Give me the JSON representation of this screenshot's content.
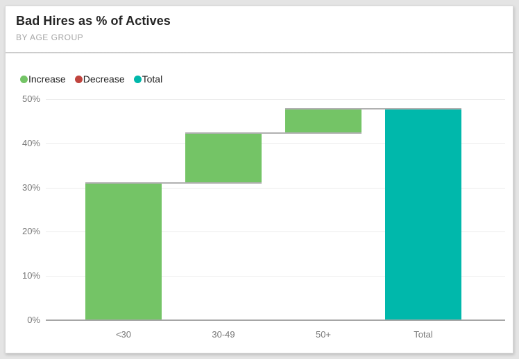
{
  "chart_data": {
    "type": "bar",
    "subtype": "waterfall",
    "title": "Bad Hires as % of Actives",
    "subtitle": "BY AGE GROUP",
    "categories": [
      "<30",
      "30-49",
      "50+",
      "Total"
    ],
    "series": [
      {
        "category": "<30",
        "kind": "increase",
        "start": 0,
        "end": 30.9,
        "delta": 30.9
      },
      {
        "category": "30-49",
        "kind": "increase",
        "start": 30.9,
        "end": 42.2,
        "delta": 11.3
      },
      {
        "category": "50+",
        "kind": "increase",
        "start": 42.2,
        "end": 47.6,
        "delta": 5.4
      },
      {
        "category": "Total",
        "kind": "total",
        "start": 0,
        "end": 47.6,
        "delta": 47.6
      }
    ],
    "xlabel": "",
    "ylabel": "",
    "ylim": [
      0,
      50
    ],
    "yticks": [
      {
        "value": 0,
        "label": "0%"
      },
      {
        "value": 10,
        "label": "10%"
      },
      {
        "value": 20,
        "label": "20%"
      },
      {
        "value": 30,
        "label": "30%"
      },
      {
        "value": 40,
        "label": "40%"
      },
      {
        "value": 50,
        "label": "50%"
      }
    ],
    "grid": true,
    "legend": {
      "position": "top-left",
      "items": [
        {
          "label": "Increase",
          "color": "#74C466",
          "kind": "increase"
        },
        {
          "label": "Decrease",
          "color": "#C0443E",
          "kind": "decrease"
        },
        {
          "label": "Total",
          "color": "#00B8AB",
          "kind": "total"
        }
      ]
    },
    "colors": {
      "increase": "#74C466",
      "decrease": "#C0443E",
      "total": "#00B8AB",
      "connector": "#B0B0B0",
      "gridline": "#ECECEC",
      "axis_line": "#A6A6A6",
      "tick_text": "#777777",
      "title_text": "#252525",
      "subtitle_text": "#A6A6A6"
    }
  }
}
